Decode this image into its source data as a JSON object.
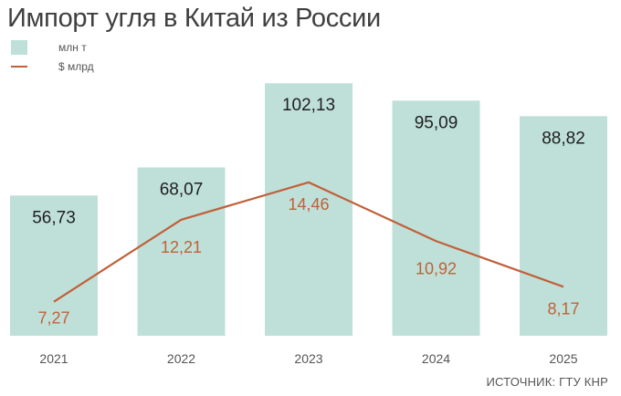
{
  "title": "Импорт угля в Китай из России",
  "source": "ИСТОЧНИК: ГТУ КНР",
  "colors": {
    "bar": "#bfe0d8",
    "line": "#c0603a",
    "bar_label": "#1f1f1f",
    "axis_label": "#555555"
  },
  "chart_data": {
    "type": "bar",
    "title": "Импорт угля в Китай из России",
    "categories": [
      "2021",
      "2022",
      "2023",
      "2024",
      "2025"
    ],
    "series": [
      {
        "name": "млн т",
        "type": "bar",
        "values": [
          56.73,
          68.07,
          102.13,
          95.09,
          88.82
        ],
        "labels": [
          "56,73",
          "68,07",
          "102,13",
          "95,09",
          "88,82"
        ]
      },
      {
        "name": "$ млрд",
        "type": "line",
        "values": [
          7.27,
          12.21,
          14.46,
          10.92,
          8.17
        ],
        "labels": [
          "7,27",
          "12,21",
          "14,46",
          "10,92",
          "8,17"
        ]
      }
    ],
    "legend": "top-left",
    "grid": false
  }
}
